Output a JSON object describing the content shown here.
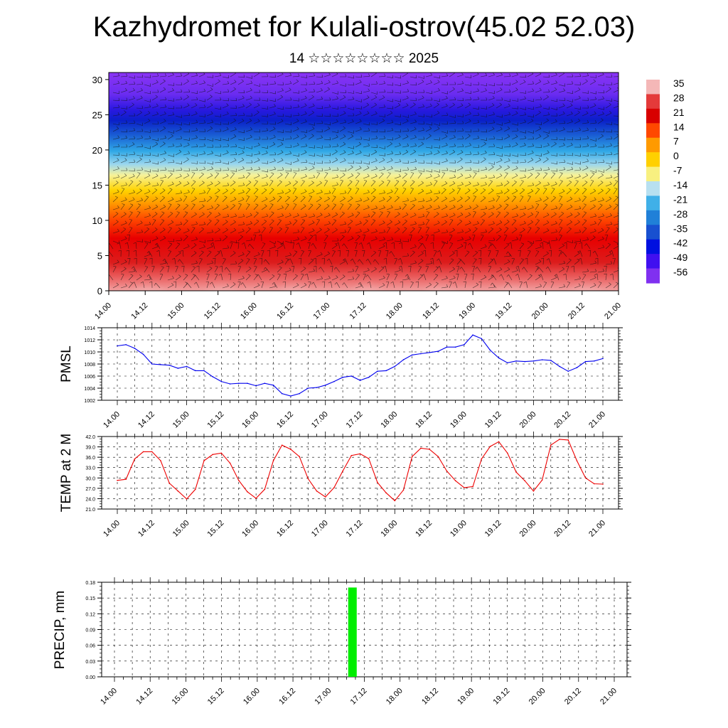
{
  "title": "Kazhydromet for Kulali-ostrov(45.02 52.03)",
  "subtitle": "14 ☆☆☆☆☆☆☆☆ 2025",
  "chart_data": [
    {
      "type": "heatmap",
      "description_kind": "time-height cross section",
      "y_ticks": [
        "0",
        "5",
        "10",
        "15",
        "20",
        "25",
        "30"
      ],
      "ylim": [
        0,
        31
      ],
      "x_ticks": [
        "14.00",
        "14.12",
        "15.00",
        "15.12",
        "16.00",
        "16.12",
        "17.00",
        "17.12",
        "18.00",
        "18.12",
        "19.00",
        "19.12",
        "20.00",
        "20.12",
        "21.00"
      ],
      "colorbar_labels": [
        "35",
        "28",
        "21",
        "14",
        "7",
        "0",
        "-7",
        "-14",
        "-21",
        "-28",
        "-35",
        "-42",
        "-49",
        "-56"
      ],
      "colorbar_colors": [
        "#f4b7b7",
        "#e43a3a",
        "#d80000",
        "#ff4800",
        "#ff9a00",
        "#ffd000",
        "#f8f080",
        "#b8e0f0",
        "#40b0e8",
        "#2080d8",
        "#1850d0",
        "#0010e0",
        "#4010f0",
        "#8030f0"
      ],
      "grid": true
    },
    {
      "type": "line",
      "ylabel": "PMSL",
      "ylim": [
        1002,
        1014
      ],
      "y_ticks": [
        "1002",
        "1004",
        "1006",
        "1008",
        "1010",
        "1012",
        "1014"
      ],
      "x_ticks": [
        "14.00",
        "14.12",
        "15.00",
        "15.12",
        "16.00",
        "16.12",
        "17.00",
        "17.12",
        "18.00",
        "18.12",
        "19.00",
        "19.12",
        "20.00",
        "20.12",
        "21.00"
      ],
      "color": "#0000ee",
      "x": [
        0,
        3,
        6,
        9,
        12,
        15,
        18,
        21,
        24,
        27,
        30,
        33,
        36,
        39,
        42,
        45,
        48,
        51,
        54,
        57,
        60,
        63,
        66,
        69,
        72,
        75,
        78,
        81,
        84,
        87,
        90,
        93,
        96,
        99,
        102,
        105,
        108,
        111,
        114,
        117,
        120,
        123,
        126,
        129,
        132,
        135,
        138,
        141,
        144,
        147,
        150,
        153,
        156,
        159,
        162,
        165,
        168
      ],
      "values": [
        1011.0,
        1011.2,
        1010.6,
        1009.6,
        1008.0,
        1007.9,
        1007.8,
        1007.3,
        1007.6,
        1006.9,
        1006.9,
        1005.9,
        1005.1,
        1004.7,
        1004.8,
        1004.8,
        1004.4,
        1004.8,
        1004.5,
        1003.1,
        1002.7,
        1003.1,
        1004.0,
        1004.1,
        1004.5,
        1005.1,
        1005.8,
        1006.0,
        1005.3,
        1005.8,
        1006.8,
        1006.9,
        1007.6,
        1008.7,
        1009.5,
        1009.7,
        1009.9,
        1010.1,
        1010.8,
        1010.8,
        1011.2,
        1012.8,
        1012.2,
        1010.3,
        1009.0,
        1008.2,
        1008.5,
        1008.4,
        1008.5,
        1008.7,
        1008.6,
        1007.6,
        1006.8,
        1007.4,
        1008.4,
        1008.5,
        1008.9
      ]
    },
    {
      "type": "line",
      "ylabel": "TEMP at 2 M",
      "ylim": [
        21,
        42
      ],
      "y_ticks": [
        "21.0",
        "24.0",
        "27.0",
        "30.0",
        "33.0",
        "36.0",
        "39.0",
        "42.0"
      ],
      "x_ticks": [
        "14.00",
        "14.12",
        "15.00",
        "15.12",
        "16.00",
        "16.12",
        "17.00",
        "17.12",
        "18.00",
        "18.12",
        "19.00",
        "19.12",
        "20.00",
        "20.12",
        "21.00"
      ],
      "color": "#ee0000",
      "x": [
        0,
        3,
        6,
        9,
        12,
        15,
        18,
        21,
        24,
        27,
        30,
        33,
        36,
        39,
        42,
        45,
        48,
        51,
        54,
        57,
        60,
        63,
        66,
        69,
        72,
        75,
        78,
        81,
        84,
        87,
        90,
        93,
        96,
        99,
        102,
        105,
        108,
        111,
        114,
        117,
        120,
        123,
        126,
        129,
        132,
        135,
        138,
        141,
        144,
        147,
        150,
        153,
        156,
        159,
        162,
        165,
        168
      ],
      "values": [
        29.3,
        29.6,
        35.5,
        37.6,
        37.6,
        35.0,
        28.5,
        26.2,
        23.9,
        26.7,
        35.0,
        36.8,
        37.2,
        34.3,
        29.3,
        26.0,
        24.1,
        26.7,
        35.0,
        39.5,
        38.3,
        36.2,
        29.8,
        26.2,
        24.5,
        27.2,
        32.0,
        36.5,
        37.0,
        35.6,
        28.7,
        25.7,
        23.4,
        26.5,
        36.2,
        38.6,
        38.3,
        36.2,
        32.0,
        29.2,
        27.2,
        27.5,
        35.5,
        39.1,
        40.5,
        37.2,
        31.7,
        29.2,
        26.2,
        29.4,
        39.5,
        41.2,
        41.0,
        35.0,
        30.0,
        28.3,
        28.2
      ]
    },
    {
      "type": "bar",
      "ylabel": "PRECIP, mm",
      "ylim": [
        0,
        0.18
      ],
      "y_ticks": [
        "0.00",
        "0.03",
        "0.06",
        "0.09",
        "0.12",
        "0.15",
        "0.18"
      ],
      "x_ticks": [
        "14.00",
        "14.12",
        "15.00",
        "15.12",
        "16.00",
        "16.12",
        "17.00",
        "17.12",
        "18.00",
        "18.12",
        "19.00",
        "19.12",
        "20.00",
        "20.12",
        "21.00"
      ],
      "color": "#00ee00",
      "x": [
        80
      ],
      "values": [
        0.17
      ]
    }
  ]
}
